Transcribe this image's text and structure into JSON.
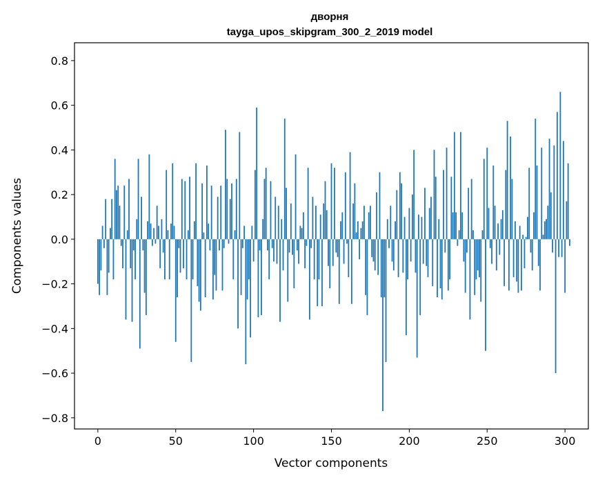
{
  "chart_data": {
    "type": "bar",
    "title": "дворня",
    "subtitle": "tayga_upos_skipgram_300_2_2019 model",
    "xlabel": "Vector components",
    "ylabel": "Components values",
    "xlim": [
      -15,
      315
    ],
    "ylim": [
      -0.85,
      0.88
    ],
    "xticks": [
      0,
      50,
      100,
      150,
      200,
      250,
      300
    ],
    "xtick_labels": [
      "0",
      "50",
      "100",
      "150",
      "200",
      "250",
      "300"
    ],
    "yticks": [
      -0.8,
      -0.6,
      -0.4,
      -0.2,
      0.0,
      0.2,
      0.4,
      0.6,
      0.8
    ],
    "ytick_labels": [
      "−0.8",
      "−0.6",
      "−0.4",
      "−0.2",
      "0.0",
      "0.2",
      "0.4",
      "0.6",
      "0.8"
    ],
    "bar_color": "#1f77b4",
    "grid": false,
    "values": [
      -0.2,
      -0.25,
      -0.14,
      0.06,
      -0.04,
      0.18,
      -0.25,
      -0.15,
      0.05,
      0.18,
      -0.18,
      0.36,
      0.22,
      0.24,
      0.15,
      -0.03,
      -0.13,
      0.24,
      -0.36,
      0.04,
      0.27,
      -0.13,
      -0.37,
      -0.05,
      -0.18,
      0.09,
      0.36,
      -0.49,
      0.19,
      -0.05,
      -0.24,
      -0.34,
      0.08,
      0.38,
      0.07,
      -0.03,
      0.05,
      -0.02,
      0.15,
      0.06,
      -0.13,
      0.09,
      -0.06,
      -0.18,
      0.31,
      0.04,
      -0.18,
      0.07,
      0.34,
      0.06,
      -0.46,
      -0.26,
      -0.04,
      -0.15,
      0.27,
      -0.13,
      0.26,
      -0.18,
      0.04,
      0.28,
      -0.55,
      -0.18,
      0.08,
      0.34,
      -0.21,
      -0.28,
      -0.32,
      0.25,
      0.03,
      -0.26,
      0.33,
      0.07,
      -0.05,
      0.24,
      -0.27,
      -0.16,
      -0.23,
      0.19,
      -0.05,
      0.24,
      -0.23,
      -0.04,
      0.49,
      0.27,
      -0.02,
      0.18,
      0.25,
      -0.18,
      0.04,
      0.27,
      -0.4,
      0.48,
      -0.25,
      -0.04,
      0.06,
      -0.56,
      -0.27,
      -0.18,
      -0.44,
      0.06,
      -0.1,
      0.31,
      0.59,
      -0.35,
      -0.05,
      -0.34,
      0.09,
      0.27,
      0.32,
      -0.05,
      -0.18,
      0.26,
      -0.04,
      -0.1,
      0.19,
      -0.11,
      0.15,
      -0.37,
      0.09,
      -0.14,
      0.54,
      0.23,
      -0.28,
      -0.06,
      0.16,
      -0.07,
      -0.22,
      0.38,
      -0.05,
      -0.11,
      0.06,
      0.05,
      0.12,
      -0.13,
      -0.03,
      0.32,
      -0.36,
      -0.04,
      0.19,
      -0.18,
      0.15,
      -0.3,
      -0.18,
      0.11,
      -0.3,
      0.16,
      0.26,
      0.13,
      -0.12,
      -0.22,
      0.34,
      -0.12,
      0.32,
      -0.06,
      -0.08,
      -0.29,
      0.08,
      0.12,
      -0.11,
      0.3,
      -0.02,
      -0.17,
      0.39,
      -0.29,
      0.16,
      0.25,
      0.03,
      0.08,
      -0.09,
      0.05,
      0.08,
      0.15,
      -0.25,
      -0.34,
      0.12,
      0.15,
      -0.08,
      -0.1,
      -0.14,
      0.21,
      -0.16,
      0.3,
      -0.26,
      -0.77,
      -0.26,
      -0.55,
      0.09,
      -0.04,
      0.15,
      -0.1,
      -0.14,
      0.08,
      0.22,
      -0.17,
      0.3,
      0.25,
      -0.15,
      0.1,
      -0.43,
      -0.18,
      0.14,
      -0.1,
      0.2,
      0.4,
      -0.15,
      -0.53,
      0.11,
      -0.34,
      0.1,
      -0.11,
      0.23,
      -0.12,
      -0.17,
      0.14,
      0.19,
      -0.21,
      0.4,
      0.28,
      -0.26,
      0.09,
      -0.22,
      -0.27,
      0.31,
      -0.06,
      0.41,
      -0.23,
      -0.18,
      0.28,
      0.12,
      0.48,
      0.12,
      -0.03,
      0.04,
      0.48,
      0.12,
      -0.1,
      -0.24,
      -0.06,
      0.23,
      -0.36,
      0.27,
      0.04,
      -0.25,
      -0.18,
      -0.14,
      -0.17,
      -0.28,
      0.04,
      0.36,
      -0.5,
      0.41,
      0.14,
      -0.04,
      -0.11,
      0.33,
      0.15,
      -0.14,
      0.07,
      -0.07,
      0.09,
      0.13,
      -0.21,
      0.31,
      0.53,
      -0.23,
      0.46,
      0.27,
      -0.17,
      0.08,
      -0.19,
      -0.24,
      0.06,
      -0.23,
      0.02,
      -0.13,
      0.01,
      0.1,
      0.32,
      -0.06,
      -0.14,
      0.12,
      0.54,
      0.33,
      -0.12,
      -0.23,
      0.41,
      0.02,
      0.08,
      0.09,
      0.15,
      0.45,
      0.21,
      -0.06,
      0.42,
      -0.6,
      0.57,
      -0.08,
      0.66,
      -0.08,
      0.44,
      -0.24,
      0.17,
      0.34,
      -0.03
    ]
  }
}
